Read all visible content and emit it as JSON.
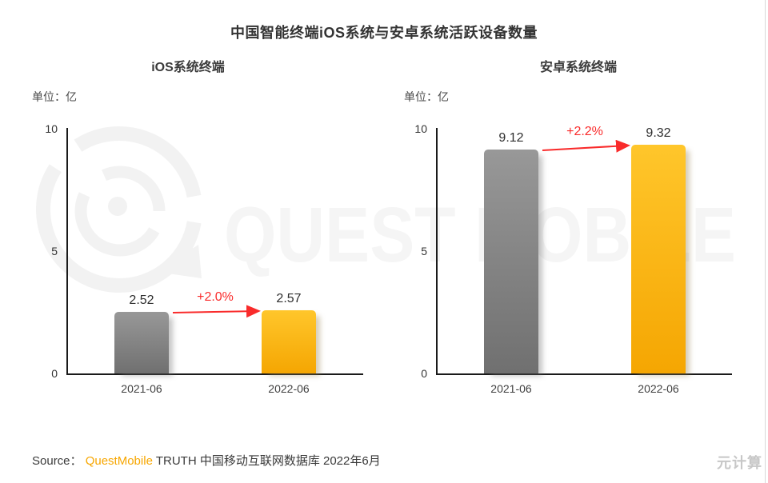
{
  "page": {
    "title": "中国智能终端iOS系统与安卓系统活跃设备数量"
  },
  "chart_data": [
    {
      "type": "bar",
      "title": "iOS系统终端",
      "unit_label": "单位：亿",
      "categories": [
        "2021-06",
        "2022-06"
      ],
      "values": [
        2.52,
        2.57
      ],
      "growth_label": "+2.0%",
      "growth_pct": 2.0,
      "ylim": [
        0,
        10
      ],
      "yticks": [
        0,
        5,
        10
      ],
      "grid": false,
      "bar_colors": [
        "#8d8d8d",
        "#fcb814"
      ]
    },
    {
      "type": "bar",
      "title": "安卓系统终端",
      "unit_label": "单位：亿",
      "categories": [
        "2021-06",
        "2022-06"
      ],
      "values": [
        9.12,
        9.32
      ],
      "growth_label": "+2.2%",
      "growth_pct": 2.2,
      "ylim": [
        0,
        10
      ],
      "yticks": [
        0,
        5,
        10
      ],
      "grid": false,
      "bar_colors": [
        "#8d8d8d",
        "#fcb814"
      ]
    }
  ],
  "watermark": {
    "logo": "questmobile-bubble-logo",
    "text": "QUEST MOBILE"
  },
  "footer": {
    "source_prefix": "Source：",
    "source_brand": "QuestMobile",
    "source_rest": " TRUTH 中国移动互联网数据库 2022年6月",
    "corner_brand": "元计算"
  },
  "colors": {
    "bar_gray_top": "#989898",
    "bar_gray_bottom": "#707070",
    "bar_yellow_top": "#ffc62b",
    "bar_yellow_bottom": "#f5a602",
    "growth_red": "#f92b2b",
    "brand_orange": "#f7a600",
    "watermark_gray": "#f2f2f2",
    "axis_black": "#1a1a1a"
  }
}
